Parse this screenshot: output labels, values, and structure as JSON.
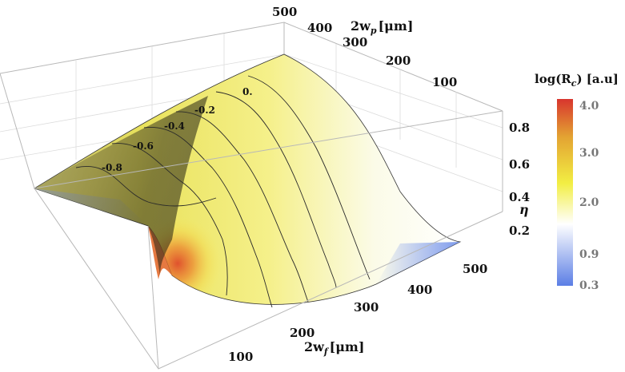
{
  "chart_data": {
    "type": "surface",
    "title": "",
    "axes": {
      "x": {
        "label": "2w",
        "label_sub": "f",
        "label_unit": "[μm]",
        "range": [
          50,
          500
        ],
        "ticks": [
          100,
          200,
          300,
          400,
          500
        ]
      },
      "y": {
        "label": "2w",
        "label_sub": "p",
        "label_unit": "[μm]",
        "range": [
          50,
          500
        ],
        "ticks": [
          100,
          200,
          300,
          400,
          500
        ]
      },
      "z": {
        "label": "η",
        "range": [
          0,
          0.9
        ],
        "ticks": [
          0.2,
          0.4,
          0.6,
          0.8
        ]
      }
    },
    "contour_labels": [
      "-0.8",
      "-0.6",
      "-0.4",
      "-0.2",
      "0."
    ],
    "colorbar": {
      "title": "log(R",
      "title_sub": "c",
      "title_unit": ") [a.u]",
      "ticks": [
        4.0,
        3.0,
        2.0,
        0.9,
        0.3
      ],
      "tick_labels": [
        "4.0",
        "3.0",
        "2.0",
        "0.9",
        "0.3"
      ],
      "range": [
        0.3,
        4.0
      ],
      "colors": [
        "#5b7ee5",
        "#ffffff",
        "#f2ee43",
        "#e3a232",
        "#d8352e"
      ]
    },
    "surface_samples": {
      "description_hint": "eta as a function of 2w_f (rows) and 2w_p (columns)",
      "wf": [
        50,
        100,
        200,
        300,
        400,
        500
      ],
      "wp": [
        50,
        100,
        200,
        300,
        400,
        500
      ],
      "eta": [
        [
          0.62,
          0.72,
          0.8,
          0.84,
          0.86,
          0.87
        ],
        [
          0.3,
          0.52,
          0.7,
          0.78,
          0.82,
          0.84
        ],
        [
          0.1,
          0.3,
          0.55,
          0.68,
          0.75,
          0.79
        ],
        [
          0.05,
          0.18,
          0.42,
          0.58,
          0.67,
          0.72
        ],
        [
          0.03,
          0.12,
          0.32,
          0.48,
          0.58,
          0.65
        ],
        [
          0.02,
          0.08,
          0.24,
          0.4,
          0.5,
          0.58
        ]
      ]
    }
  }
}
